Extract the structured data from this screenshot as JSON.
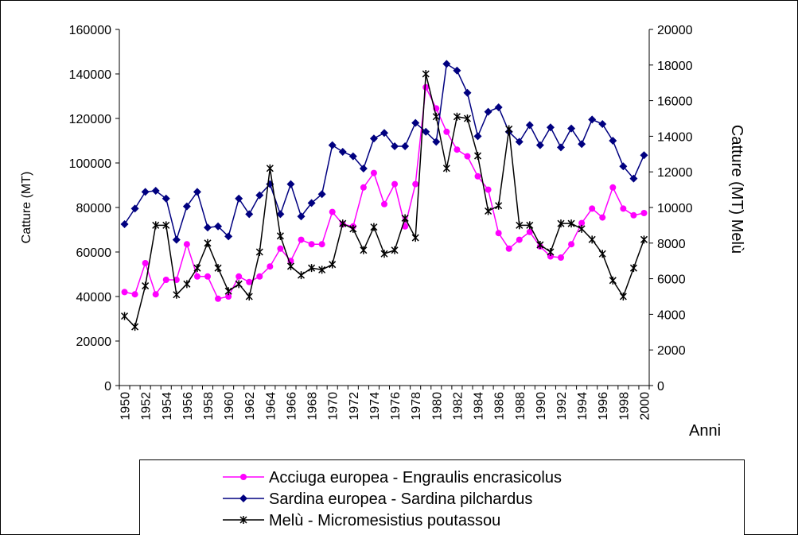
{
  "chart_data": {
    "type": "line",
    "y_label": "Catture (MT)",
    "y2_label": "Catture (MT) Melù",
    "x_label": "Anni",
    "categories": [
      "1950",
      null,
      "1952",
      null,
      "1954",
      null,
      "1956",
      null,
      "1958",
      null,
      "1960",
      null,
      "1962",
      null,
      "1964",
      null,
      "1966",
      null,
      "1968",
      null,
      "1970",
      null,
      "1972",
      null,
      "1974",
      null,
      "1976",
      null,
      "1978",
      null,
      "1980",
      null,
      "1982",
      null,
      "1984",
      null,
      "1986",
      null,
      "1988",
      null,
      "1990",
      null,
      "1992",
      null,
      "1994",
      null,
      "1996",
      null,
      "1998",
      null,
      "2000"
    ],
    "ylim": [
      0,
      160000
    ],
    "yticks": [
      0,
      20000,
      40000,
      60000,
      80000,
      100000,
      120000,
      140000,
      160000
    ],
    "y2lim": [
      0,
      20000
    ],
    "y2ticks": [
      0,
      2000,
      4000,
      6000,
      8000,
      10000,
      12000,
      14000,
      16000,
      18000,
      20000
    ],
    "grid": false,
    "series": [
      {
        "name": "Acciuga europea - Engraulis encrasicolus",
        "color": "#ff00ff",
        "marker": "circle",
        "values": [
          42000,
          41000,
          55000,
          41000,
          47500,
          47500,
          63500,
          49000,
          49000,
          39000,
          40000,
          49000,
          46500,
          49000,
          53500,
          61500,
          56000,
          65500,
          63500,
          63500,
          78000,
          72500,
          71500,
          89000,
          95500,
          81500,
          90500,
          71500,
          90500,
          134000,
          124500,
          114000,
          106000,
          103000,
          94000,
          88000,
          68500,
          61500,
          65500,
          69000,
          62500,
          58000,
          57500,
          63500,
          73000,
          79500,
          75500,
          89000,
          79500,
          76500,
          77500
        ]
      },
      {
        "name": "Sardina europea - Sardina pilchardus",
        "color": "#000080",
        "marker": "diamond",
        "values": [
          72500,
          79500,
          87000,
          87500,
          84000,
          65500,
          80500,
          87000,
          71000,
          71500,
          67000,
          84000,
          77000,
          85500,
          90500,
          77000,
          90500,
          76000,
          82000,
          86000,
          108000,
          105000,
          103000,
          97500,
          111000,
          113500,
          107500,
          107500,
          118000,
          114000,
          109500,
          144500,
          141500,
          131500,
          112000,
          123000,
          125000,
          114000,
          109500,
          117000,
          108000,
          116000,
          107000,
          115500,
          108500,
          119500,
          117500,
          110000,
          98500,
          93000,
          103500
        ]
      },
      {
        "name": "Melù - Micromesistius poutassou",
        "color": "#000000",
        "marker": "star",
        "axis": "y2",
        "values": [
          3900,
          3300,
          5600,
          9000,
          9000,
          5100,
          5700,
          6600,
          8000,
          6600,
          5300,
          5700,
          5000,
          7500,
          12200,
          8400,
          6700,
          6200,
          6600,
          6500,
          6800,
          9100,
          8800,
          7600,
          8900,
          7400,
          7600,
          9400,
          8300,
          17500,
          15100,
          12200,
          15100,
          15000,
          12900,
          9800,
          10100,
          14400,
          9000,
          9000,
          7900,
          7500,
          9100,
          9100,
          8800,
          8200,
          7400,
          5900,
          5000,
          6600,
          8200
        ]
      }
    ]
  }
}
